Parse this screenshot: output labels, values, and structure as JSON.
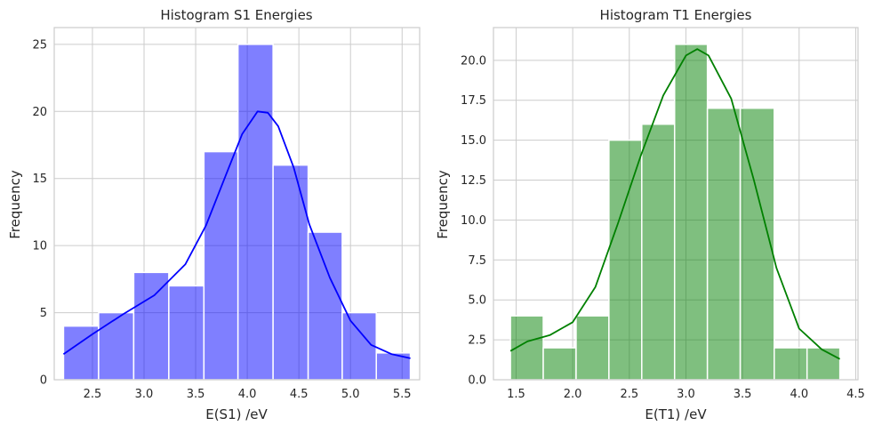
{
  "chart_data": [
    {
      "type": "bar",
      "title": "Histogram S1 Energies",
      "xlabel": "E(S1) /eV",
      "ylabel": "Frequency",
      "xlim": [
        2.13,
        5.67
      ],
      "ylim": [
        0,
        26.25
      ],
      "xticks": [
        2.5,
        3.0,
        3.5,
        4.0,
        4.5,
        5.0,
        5.5
      ],
      "xtick_labels": [
        "2.5",
        "3.0",
        "3.5",
        "4.0",
        "4.5",
        "5.0",
        "5.5"
      ],
      "yticks": [
        0,
        5,
        10,
        15,
        20,
        25
      ],
      "ytick_labels": [
        "0",
        "5",
        "10",
        "15",
        "20",
        "25"
      ],
      "bin_edges": [
        2.22,
        2.56,
        2.9,
        3.24,
        3.58,
        3.91,
        4.25,
        4.59,
        4.92,
        5.25,
        5.58
      ],
      "values": [
        4,
        5,
        8,
        7,
        17,
        25,
        16,
        11,
        5,
        2
      ],
      "color": "#0000ff",
      "kde": [
        [
          2.22,
          1.9
        ],
        [
          2.5,
          3.4
        ],
        [
          2.8,
          4.9
        ],
        [
          3.1,
          6.3
        ],
        [
          3.4,
          8.6
        ],
        [
          3.6,
          11.5
        ],
        [
          3.8,
          15.4
        ],
        [
          3.95,
          18.3
        ],
        [
          4.1,
          20.0
        ],
        [
          4.2,
          19.9
        ],
        [
          4.3,
          18.9
        ],
        [
          4.45,
          15.8
        ],
        [
          4.6,
          11.6
        ],
        [
          4.8,
          7.6
        ],
        [
          5.0,
          4.4
        ],
        [
          5.2,
          2.6
        ],
        [
          5.4,
          1.9
        ],
        [
          5.58,
          1.6
        ]
      ],
      "grid": true
    },
    {
      "type": "bar",
      "title": "Histogram T1 Energies",
      "xlabel": "E(T1) /eV",
      "ylabel": "Frequency",
      "xlim": [
        1.3,
        4.52
      ],
      "ylim": [
        0,
        22.05
      ],
      "xticks": [
        1.5,
        2.0,
        2.5,
        3.0,
        3.5,
        4.0,
        4.5
      ],
      "xtick_labels": [
        "1.5",
        "2.0",
        "2.5",
        "3.0",
        "3.5",
        "4.0",
        "4.5"
      ],
      "yticks": [
        0,
        2.5,
        5.0,
        7.5,
        10.0,
        12.5,
        15.0,
        17.5,
        20.0
      ],
      "ytick_labels": [
        "0.0",
        "2.5",
        "5.0",
        "7.5",
        "10.0",
        "12.5",
        "15.0",
        "17.5",
        "20.0"
      ],
      "bin_edges": [
        1.45,
        1.74,
        2.03,
        2.32,
        2.61,
        2.9,
        3.19,
        3.48,
        3.78,
        4.07,
        4.36
      ],
      "values": [
        4,
        2,
        4,
        15,
        16,
        21,
        17,
        17,
        2,
        2
      ],
      "color": "#008000",
      "kde": [
        [
          1.45,
          1.8
        ],
        [
          1.6,
          2.4
        ],
        [
          1.8,
          2.8
        ],
        [
          2.0,
          3.6
        ],
        [
          2.2,
          5.8
        ],
        [
          2.4,
          9.8
        ],
        [
          2.6,
          14.0
        ],
        [
          2.8,
          17.8
        ],
        [
          3.0,
          20.3
        ],
        [
          3.1,
          20.7
        ],
        [
          3.2,
          20.3
        ],
        [
          3.4,
          17.6
        ],
        [
          3.6,
          12.5
        ],
        [
          3.8,
          7.0
        ],
        [
          4.0,
          3.2
        ],
        [
          4.2,
          1.9
        ],
        [
          4.36,
          1.3
        ]
      ],
      "grid": true
    }
  ]
}
